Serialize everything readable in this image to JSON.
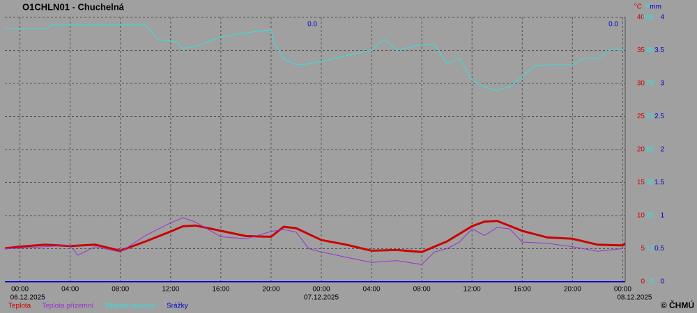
{
  "chart_data": {
    "type": "line",
    "title": "O1CHLN01 - Chuchelná",
    "xlim": [
      -1.2,
      48.2
    ],
    "xticks": [
      {
        "value": 0,
        "label": "00:00"
      },
      {
        "value": 4,
        "label": "04:00"
      },
      {
        "value": 8,
        "label": "08:00"
      },
      {
        "value": 12,
        "label": "12:00"
      },
      {
        "value": 16,
        "label": "16:00"
      },
      {
        "value": 20,
        "label": "20:00"
      },
      {
        "value": 24,
        "label": "00:00"
      },
      {
        "value": 28,
        "label": "04:00"
      },
      {
        "value": 32,
        "label": "08:00"
      },
      {
        "value": 36,
        "label": "12:00"
      },
      {
        "value": 40,
        "label": "16:00"
      },
      {
        "value": 44,
        "label": "20:00"
      },
      {
        "value": 48,
        "label": "00:00"
      }
    ],
    "date_labels": [
      {
        "value": 0,
        "label": "06.12.2025"
      },
      {
        "value": 24,
        "label": "07.12.2025"
      },
      {
        "value": 48,
        "label": "08.12.2025"
      }
    ],
    "y_unit": "°C",
    "ylim": [
      0,
      40
    ],
    "yticks": [
      0,
      5,
      10,
      15,
      20,
      25,
      30,
      35,
      40
    ],
    "y_color": "#cc0000",
    "y2_unit": "%",
    "y2lim": [
      0,
      100
    ],
    "y2ticks": [
      0,
      {
        "value": 12.5,
        "label": "13"
      },
      25,
      {
        "value": 37.5,
        "label": "38"
      },
      50,
      {
        "value": 62.5,
        "label": "63"
      },
      75,
      {
        "value": 87.5,
        "label": "88"
      },
      100
    ],
    "y2_color": "#33e0e0",
    "y3_unit": "mm",
    "y3lim": [
      0,
      4
    ],
    "y3ticks": [
      0,
      0.5,
      1,
      1.5,
      2,
      2.5,
      3,
      3.5,
      4
    ],
    "y3_color": "#0000cc",
    "grid": true,
    "annotations": [
      "0.0",
      "0.0"
    ],
    "copyright": "© ČHMÚ",
    "series": [
      {
        "name": "Teplota",
        "color": "#cc0000",
        "axis": "y",
        "width": 3,
        "x": [
          -1.2,
          0,
          2,
          4,
          6,
          8,
          10,
          12,
          13,
          14,
          16,
          18,
          20,
          21,
          22,
          24,
          26,
          28,
          30,
          32,
          34,
          36,
          37,
          38,
          40,
          42,
          44,
          46,
          48,
          48.2
        ],
        "values": [
          5.05,
          5.3,
          5.6,
          5.4,
          5.6,
          4.7,
          6.1,
          7.6,
          8.4,
          8.5,
          7.7,
          6.9,
          6.8,
          8.3,
          8.1,
          6.3,
          5.6,
          4.7,
          4.8,
          4.5,
          6.1,
          8.4,
          9.1,
          9.2,
          7.7,
          6.7,
          6.5,
          5.6,
          5.5,
          5.8
        ]
      },
      {
        "name": "Teplota přízemní",
        "color": "#9933cc",
        "axis": "y",
        "width": 1,
        "x": [
          -1.2,
          0,
          2,
          4,
          4.6,
          6,
          8,
          10,
          12,
          13,
          14,
          16,
          18,
          20,
          21,
          22,
          23,
          24,
          26,
          28,
          30,
          32,
          33,
          34,
          35,
          36,
          37,
          38,
          39,
          40,
          42,
          44,
          46,
          48
        ],
        "values": [
          5.0,
          5.1,
          5.3,
          5.5,
          4.0,
          5.3,
          4.5,
          7.0,
          8.9,
          9.7,
          9.0,
          6.8,
          6.5,
          7.6,
          7.9,
          7.5,
          5.0,
          4.5,
          3.7,
          2.9,
          3.2,
          2.6,
          4.5,
          5.0,
          6.0,
          8.0,
          7.0,
          8.2,
          8.0,
          6.0,
          5.8,
          5.3,
          4.6,
          5.0
        ]
      },
      {
        "name": "Vlhkost vzduchu",
        "color": "#33e0e0",
        "axis": "y2",
        "width": 1,
        "x": [
          -1.2,
          2.2,
          2.5,
          10,
          11,
          12.5,
          13,
          14,
          16,
          18,
          20,
          20.2,
          21,
          22,
          23,
          24,
          26,
          28,
          29,
          30,
          32,
          33,
          34,
          35,
          36,
          37,
          38,
          39,
          40,
          41,
          42,
          44,
          45,
          46,
          47,
          48
        ],
        "values": [
          95.8,
          95.8,
          97.1,
          97.1,
          91.6,
          90.8,
          88.2,
          89,
          92.6,
          94.2,
          95.3,
          90.8,
          84.2,
          82.1,
          82.4,
          83.4,
          85.5,
          87.6,
          91.8,
          87.6,
          89.7,
          89.7,
          82.4,
          84.7,
          76.3,
          73.7,
          72.4,
          73.7,
          77.6,
          81.6,
          82.1,
          82.1,
          84.7,
          84.2,
          87.9,
          87.6
        ]
      },
      {
        "name": "Srážky",
        "color": "#0000cc",
        "axis": "y3",
        "width": 2,
        "x": [
          -1.2,
          48.2
        ],
        "values": [
          0,
          0
        ]
      }
    ]
  }
}
